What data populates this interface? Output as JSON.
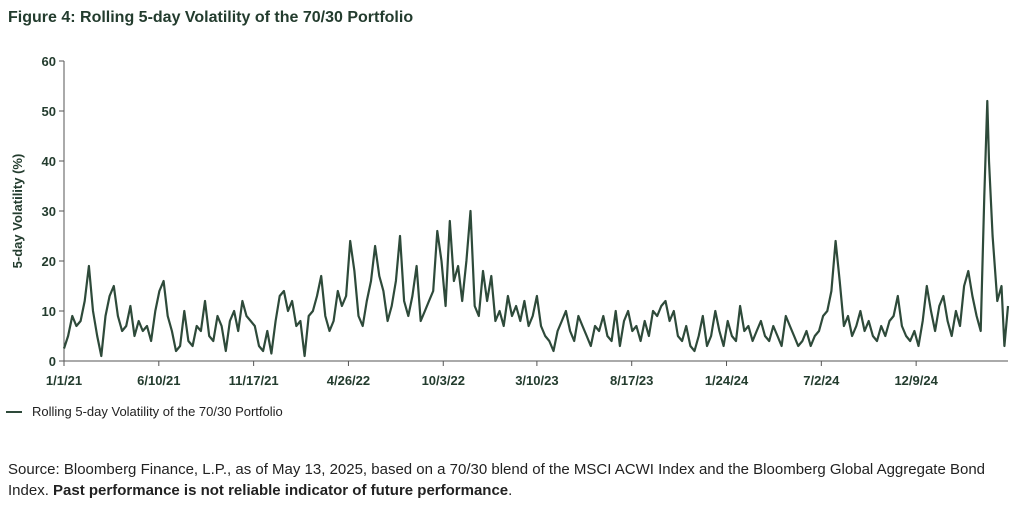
{
  "title": "Figure 4: Rolling 5-day Volatility of the 70/30 Portfolio",
  "legend": {
    "label": "Rolling 5-day Volatility of the 70/30 Portfolio",
    "color": "#2e4a3a"
  },
  "source": {
    "text": "Source: Bloomberg Finance, L.P., as of May 13, 2025, based on a 70/30 blend of the MSCI ACWI Index and the Bloomberg Global Aggregate Bond Index.",
    "bold": "Past performance is not reliable indicator of future performance",
    "end": "."
  },
  "colors": {
    "line": "#2e4a3a",
    "text": "#233c2e",
    "axis": "#555555"
  },
  "chart_data": {
    "type": "line",
    "title": "Figure 4: Rolling 5-day Volatility of the 70/30 Portfolio",
    "xlabel": "",
    "ylabel": "5-day Volatility (%)",
    "ylim": [
      0,
      60
    ],
    "yticks": [
      0,
      10,
      20,
      30,
      40,
      50,
      60
    ],
    "xlim": [
      "2021-01-01",
      "2025-05-13"
    ],
    "xticks": [
      {
        "label": "1/1/21",
        "date": "2021-01-01"
      },
      {
        "label": "6/10/21",
        "date": "2021-06-10"
      },
      {
        "label": "11/17/21",
        "date": "2021-11-17"
      },
      {
        "label": "4/26/22",
        "date": "2022-04-26"
      },
      {
        "label": "10/3/22",
        "date": "2022-10-03"
      },
      {
        "label": "3/10/23",
        "date": "2023-03-10"
      },
      {
        "label": "8/17/23",
        "date": "2023-08-17"
      },
      {
        "label": "1/24/24",
        "date": "2024-01-24"
      },
      {
        "label": "7/2/24",
        "date": "2024-07-02"
      },
      {
        "label": "12/9/24",
        "date": "2024-12-09"
      }
    ],
    "grid": false,
    "legend_position": "bottom-left",
    "series": [
      {
        "name": "Rolling 5-day Volatility of the 70/30 Portfolio",
        "points": [
          [
            "2021-01-01",
            2.5
          ],
          [
            "2021-01-08",
            5
          ],
          [
            "2021-01-15",
            9
          ],
          [
            "2021-01-22",
            7
          ],
          [
            "2021-01-29",
            8
          ],
          [
            "2021-02-05",
            12
          ],
          [
            "2021-02-12",
            19
          ],
          [
            "2021-02-19",
            10
          ],
          [
            "2021-02-26",
            5
          ],
          [
            "2021-03-05",
            1
          ],
          [
            "2021-03-12",
            9
          ],
          [
            "2021-03-19",
            13
          ],
          [
            "2021-03-26",
            15
          ],
          [
            "2021-04-02",
            9
          ],
          [
            "2021-04-09",
            6
          ],
          [
            "2021-04-16",
            7
          ],
          [
            "2021-04-23",
            11
          ],
          [
            "2021-04-30",
            5
          ],
          [
            "2021-05-07",
            8
          ],
          [
            "2021-05-14",
            6
          ],
          [
            "2021-05-21",
            7
          ],
          [
            "2021-05-28",
            4
          ],
          [
            "2021-06-04",
            10
          ],
          [
            "2021-06-11",
            14
          ],
          [
            "2021-06-18",
            16
          ],
          [
            "2021-06-25",
            9
          ],
          [
            "2021-07-02",
            6
          ],
          [
            "2021-07-09",
            2
          ],
          [
            "2021-07-16",
            3
          ],
          [
            "2021-07-23",
            10
          ],
          [
            "2021-07-30",
            4
          ],
          [
            "2021-08-06",
            3
          ],
          [
            "2021-08-13",
            7
          ],
          [
            "2021-08-20",
            6
          ],
          [
            "2021-08-27",
            12
          ],
          [
            "2021-09-03",
            5
          ],
          [
            "2021-09-10",
            4
          ],
          [
            "2021-09-17",
            9
          ],
          [
            "2021-09-24",
            7
          ],
          [
            "2021-10-01",
            2
          ],
          [
            "2021-10-08",
            8
          ],
          [
            "2021-10-15",
            10
          ],
          [
            "2021-10-22",
            6
          ],
          [
            "2021-10-29",
            12
          ],
          [
            "2021-11-05",
            9
          ],
          [
            "2021-11-12",
            8
          ],
          [
            "2021-11-19",
            7
          ],
          [
            "2021-11-26",
            3
          ],
          [
            "2021-12-03",
            2
          ],
          [
            "2021-12-10",
            6
          ],
          [
            "2021-12-17",
            1.5
          ],
          [
            "2021-12-24",
            8
          ],
          [
            "2021-12-31",
            13
          ],
          [
            "2022-01-07",
            14
          ],
          [
            "2022-01-14",
            10
          ],
          [
            "2022-01-21",
            12
          ],
          [
            "2022-01-28",
            7
          ],
          [
            "2022-02-04",
            8
          ],
          [
            "2022-02-11",
            1
          ],
          [
            "2022-02-18",
            9
          ],
          [
            "2022-02-25",
            10
          ],
          [
            "2022-03-04",
            13
          ],
          [
            "2022-03-11",
            17
          ],
          [
            "2022-03-18",
            9
          ],
          [
            "2022-03-25",
            6
          ],
          [
            "2022-04-01",
            8
          ],
          [
            "2022-04-08",
            14
          ],
          [
            "2022-04-15",
            11
          ],
          [
            "2022-04-22",
            13
          ],
          [
            "2022-04-29",
            24
          ],
          [
            "2022-05-06",
            18
          ],
          [
            "2022-05-13",
            9
          ],
          [
            "2022-05-20",
            7
          ],
          [
            "2022-05-27",
            12
          ],
          [
            "2022-06-03",
            16
          ],
          [
            "2022-06-10",
            23
          ],
          [
            "2022-06-17",
            17
          ],
          [
            "2022-06-24",
            14
          ],
          [
            "2022-07-01",
            8
          ],
          [
            "2022-07-08",
            11
          ],
          [
            "2022-07-15",
            16
          ],
          [
            "2022-07-22",
            25
          ],
          [
            "2022-07-29",
            12
          ],
          [
            "2022-08-05",
            9
          ],
          [
            "2022-08-12",
            13
          ],
          [
            "2022-08-19",
            19
          ],
          [
            "2022-08-26",
            8
          ],
          [
            "2022-09-02",
            10
          ],
          [
            "2022-09-09",
            12
          ],
          [
            "2022-09-16",
            14
          ],
          [
            "2022-09-23",
            26
          ],
          [
            "2022-09-30",
            20
          ],
          [
            "2022-10-07",
            11
          ],
          [
            "2022-10-14",
            28
          ],
          [
            "2022-10-21",
            16
          ],
          [
            "2022-10-28",
            19
          ],
          [
            "2022-11-04",
            12
          ],
          [
            "2022-11-11",
            20
          ],
          [
            "2022-11-18",
            30
          ],
          [
            "2022-11-25",
            11
          ],
          [
            "2022-12-02",
            9
          ],
          [
            "2022-12-09",
            18
          ],
          [
            "2022-12-16",
            12
          ],
          [
            "2022-12-23",
            17
          ],
          [
            "2022-12-30",
            8
          ],
          [
            "2023-01-06",
            10
          ],
          [
            "2023-01-13",
            7
          ],
          [
            "2023-01-20",
            13
          ],
          [
            "2023-01-27",
            9
          ],
          [
            "2023-02-03",
            11
          ],
          [
            "2023-02-10",
            8
          ],
          [
            "2023-02-17",
            12
          ],
          [
            "2023-02-24",
            7
          ],
          [
            "2023-03-03",
            9
          ],
          [
            "2023-03-10",
            13
          ],
          [
            "2023-03-17",
            7
          ],
          [
            "2023-03-24",
            5
          ],
          [
            "2023-03-31",
            4
          ],
          [
            "2023-04-07",
            2
          ],
          [
            "2023-04-14",
            6
          ],
          [
            "2023-04-21",
            8
          ],
          [
            "2023-04-28",
            10
          ],
          [
            "2023-05-05",
            6
          ],
          [
            "2023-05-12",
            4
          ],
          [
            "2023-05-19",
            9
          ],
          [
            "2023-05-26",
            7
          ],
          [
            "2023-06-02",
            5
          ],
          [
            "2023-06-09",
            3
          ],
          [
            "2023-06-16",
            7
          ],
          [
            "2023-06-23",
            6
          ],
          [
            "2023-06-30",
            9
          ],
          [
            "2023-07-07",
            5
          ],
          [
            "2023-07-14",
            4
          ],
          [
            "2023-07-21",
            10
          ],
          [
            "2023-07-28",
            3
          ],
          [
            "2023-08-04",
            8
          ],
          [
            "2023-08-11",
            10
          ],
          [
            "2023-08-18",
            6
          ],
          [
            "2023-08-25",
            7
          ],
          [
            "2023-09-01",
            4
          ],
          [
            "2023-09-08",
            8
          ],
          [
            "2023-09-15",
            5
          ],
          [
            "2023-09-22",
            10
          ],
          [
            "2023-09-29",
            9
          ],
          [
            "2023-10-06",
            11
          ],
          [
            "2023-10-13",
            12
          ],
          [
            "2023-10-20",
            8
          ],
          [
            "2023-10-27",
            10
          ],
          [
            "2023-11-03",
            5
          ],
          [
            "2023-11-10",
            4
          ],
          [
            "2023-11-17",
            7
          ],
          [
            "2023-11-24",
            3
          ],
          [
            "2023-12-01",
            2
          ],
          [
            "2023-12-08",
            5
          ],
          [
            "2023-12-15",
            9
          ],
          [
            "2023-12-22",
            3
          ],
          [
            "2023-12-29",
            5
          ],
          [
            "2024-01-05",
            10
          ],
          [
            "2024-01-12",
            6
          ],
          [
            "2024-01-19",
            3
          ],
          [
            "2024-01-26",
            8
          ],
          [
            "2024-02-02",
            5
          ],
          [
            "2024-02-09",
            4
          ],
          [
            "2024-02-16",
            11
          ],
          [
            "2024-02-23",
            6
          ],
          [
            "2024-03-01",
            7
          ],
          [
            "2024-03-08",
            4
          ],
          [
            "2024-03-15",
            6
          ],
          [
            "2024-03-22",
            8
          ],
          [
            "2024-03-29",
            5
          ],
          [
            "2024-04-05",
            4
          ],
          [
            "2024-04-12",
            7
          ],
          [
            "2024-04-19",
            5
          ],
          [
            "2024-04-26",
            3
          ],
          [
            "2024-05-03",
            9
          ],
          [
            "2024-05-10",
            7
          ],
          [
            "2024-05-17",
            5
          ],
          [
            "2024-05-24",
            3
          ],
          [
            "2024-05-31",
            4
          ],
          [
            "2024-06-07",
            6
          ],
          [
            "2024-06-14",
            3
          ],
          [
            "2024-06-21",
            5
          ],
          [
            "2024-06-28",
            6
          ],
          [
            "2024-07-05",
            9
          ],
          [
            "2024-07-12",
            10
          ],
          [
            "2024-07-19",
            14
          ],
          [
            "2024-07-26",
            24
          ],
          [
            "2024-08-02",
            16
          ],
          [
            "2024-08-09",
            7
          ],
          [
            "2024-08-16",
            9
          ],
          [
            "2024-08-23",
            5
          ],
          [
            "2024-08-30",
            7
          ],
          [
            "2024-09-06",
            10
          ],
          [
            "2024-09-13",
            6
          ],
          [
            "2024-09-20",
            8
          ],
          [
            "2024-09-27",
            5
          ],
          [
            "2024-10-04",
            4
          ],
          [
            "2024-10-11",
            7
          ],
          [
            "2024-10-18",
            5
          ],
          [
            "2024-10-25",
            8
          ],
          [
            "2024-11-01",
            9
          ],
          [
            "2024-11-08",
            13
          ],
          [
            "2024-11-15",
            7
          ],
          [
            "2024-11-22",
            5
          ],
          [
            "2024-11-29",
            4
          ],
          [
            "2024-12-06",
            6
          ],
          [
            "2024-12-13",
            3
          ],
          [
            "2024-12-20",
            8
          ],
          [
            "2024-12-27",
            15
          ],
          [
            "2025-01-03",
            10
          ],
          [
            "2025-01-10",
            6
          ],
          [
            "2025-01-17",
            11
          ],
          [
            "2025-01-24",
            13
          ],
          [
            "2025-01-31",
            8
          ],
          [
            "2025-02-07",
            5
          ],
          [
            "2025-02-14",
            10
          ],
          [
            "2025-02-21",
            7
          ],
          [
            "2025-02-28",
            15
          ],
          [
            "2025-03-07",
            18
          ],
          [
            "2025-03-14",
            13
          ],
          [
            "2025-03-21",
            9
          ],
          [
            "2025-03-28",
            6
          ],
          [
            "2025-04-03",
            33
          ],
          [
            "2025-04-08",
            52
          ],
          [
            "2025-04-11",
            40
          ],
          [
            "2025-04-17",
            25
          ],
          [
            "2025-04-25",
            12
          ],
          [
            "2025-05-02",
            15
          ],
          [
            "2025-05-07",
            3
          ],
          [
            "2025-05-10",
            7
          ],
          [
            "2025-05-13",
            11
          ]
        ]
      }
    ]
  }
}
